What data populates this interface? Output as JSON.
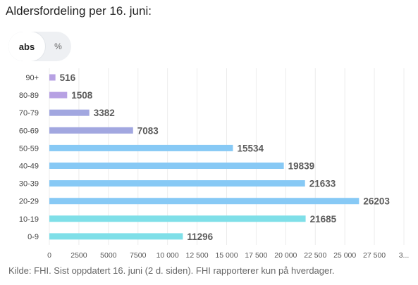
{
  "title": "Aldersfordeling per 16. juni:",
  "toggle": {
    "options": [
      {
        "label": "abs",
        "active": true
      },
      {
        "label": "%",
        "active": false
      }
    ]
  },
  "source": "Kilde: FHI. Sist oppdatert 16. juni (2 d. siden). FHI rapporterer kun på hverdager.",
  "chart_data": {
    "type": "bar",
    "orientation": "horizontal",
    "categories": [
      "90+",
      "80-89",
      "70-79",
      "60-69",
      "50-59",
      "40-49",
      "30-39",
      "20-29",
      "10-19",
      "0-9"
    ],
    "values": [
      516,
      1508,
      3382,
      7083,
      15534,
      19839,
      21633,
      26203,
      21685,
      11296
    ],
    "bar_colors": [
      "#b7a1e3",
      "#b7a1e3",
      "#a2a7e0",
      "#a2a7e0",
      "#87c9f5",
      "#87c9f5",
      "#87c9f5",
      "#87c9f5",
      "#7fdfe8",
      "#7fdfe8"
    ],
    "x_ticks": [
      "0",
      "2500",
      "5000",
      "7500",
      "10 000",
      "12 500",
      "15 000",
      "17 500",
      "20 000",
      "22 500",
      "25 000",
      "27 500",
      "3..."
    ],
    "xlim": [
      0,
      30000
    ],
    "grid": true
  }
}
